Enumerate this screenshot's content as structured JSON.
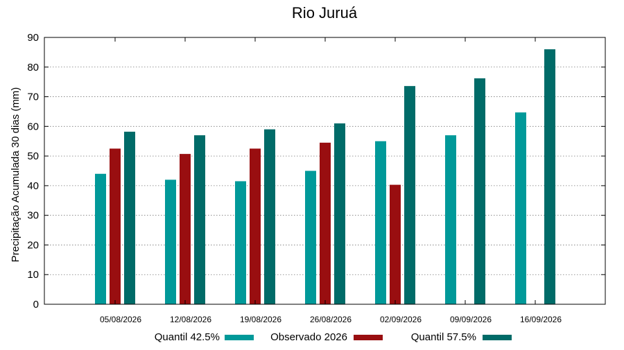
{
  "chart_data": {
    "type": "bar",
    "title": "Rio Juruá",
    "xlabel": "",
    "ylabel": "Precipitação Acumulada 30 dias (mm)",
    "ylim": [
      0,
      90
    ],
    "yticks": [
      0,
      10,
      20,
      30,
      40,
      50,
      60,
      70,
      80,
      90
    ],
    "grid": true,
    "legend_position": "bottom",
    "categories": [
      "05/08/2026",
      "12/08/2026",
      "19/08/2026",
      "26/08/2026",
      "02/09/2026",
      "09/09/2026",
      "16/09/2026"
    ],
    "series": [
      {
        "name": "Quantil 42.5%",
        "color": "#009999",
        "values": [
          44,
          42,
          41.5,
          45,
          55,
          57,
          64.7
        ]
      },
      {
        "name": "Observado 2026",
        "color": "#990e10",
        "values": [
          52.5,
          50.7,
          52.5,
          54.5,
          40.3,
          null,
          null
        ]
      },
      {
        "name": "Quantil 57.5%",
        "color": "#006b68",
        "values": [
          58.2,
          57,
          59,
          61,
          73.6,
          76.2,
          86
        ]
      }
    ]
  }
}
